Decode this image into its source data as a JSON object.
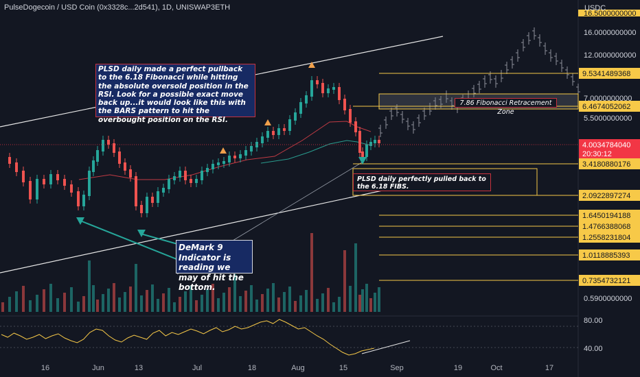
{
  "header": {
    "title": "PulseDogecoin / USD Coin (0x3328c...2d541), 1D, UNISWAP3ETH",
    "currency": "USDC"
  },
  "price_axis": {
    "labels": [
      "16.0000000000",
      "12.0000000000",
      "7.0000000000",
      "5.5000000000",
      "0.5900000000"
    ],
    "top_partial": "16.5000000000"
  },
  "fib_levels": [
    {
      "value": "9.5341489368",
      "color": "#f7c948"
    },
    {
      "value": "6.4674052062",
      "color": "#f7c948"
    },
    {
      "value": "3.4180880176",
      "color": "#f7c948"
    },
    {
      "value": "2.0922897274",
      "color": "#f7c948"
    },
    {
      "value": "1.6450194188",
      "color": "#f7c948"
    },
    {
      "value": "1.4766388068",
      "color": "#f7c948"
    },
    {
      "value": "1.2558231804",
      "color": "#f7c948"
    },
    {
      "value": "1.0118885393",
      "color": "#f7c948"
    },
    {
      "value": "0.7354732121",
      "color": "#f7c948"
    }
  ],
  "current_price": {
    "value": "4.0034784040",
    "countdown": "20:30:12",
    "color": "#f23645"
  },
  "rsi_axis": {
    "labels": [
      "80.00",
      "40.00"
    ]
  },
  "time_axis": {
    "labels": [
      "16",
      "Jun",
      "13",
      "Jul",
      "18",
      "Aug",
      "15",
      "Sep",
      "19",
      "Oct",
      "17"
    ]
  },
  "annotations": {
    "note_main": "PLSD daily made a perfect pullback to the 6.18 Fibonacci while hitting the absolute oversold position in the RSI. Look for a possible exact move back up...it would look like this with the BARS pattern to hit the overbought position on the RSI.",
    "note_fib": "PLSD daily perfectly pulled back to the 6.18 FIBS.",
    "note_demark": "DeMark 9 Indicator is reading we may of hit the bottom.",
    "zone_label": "7.86 Fibonacci Retracement Zone"
  },
  "colors": {
    "background": "#131722",
    "bull": "#26a69a",
    "bear": "#ef5350",
    "fib": "#f7c948",
    "rsi": "#f7c948"
  }
}
